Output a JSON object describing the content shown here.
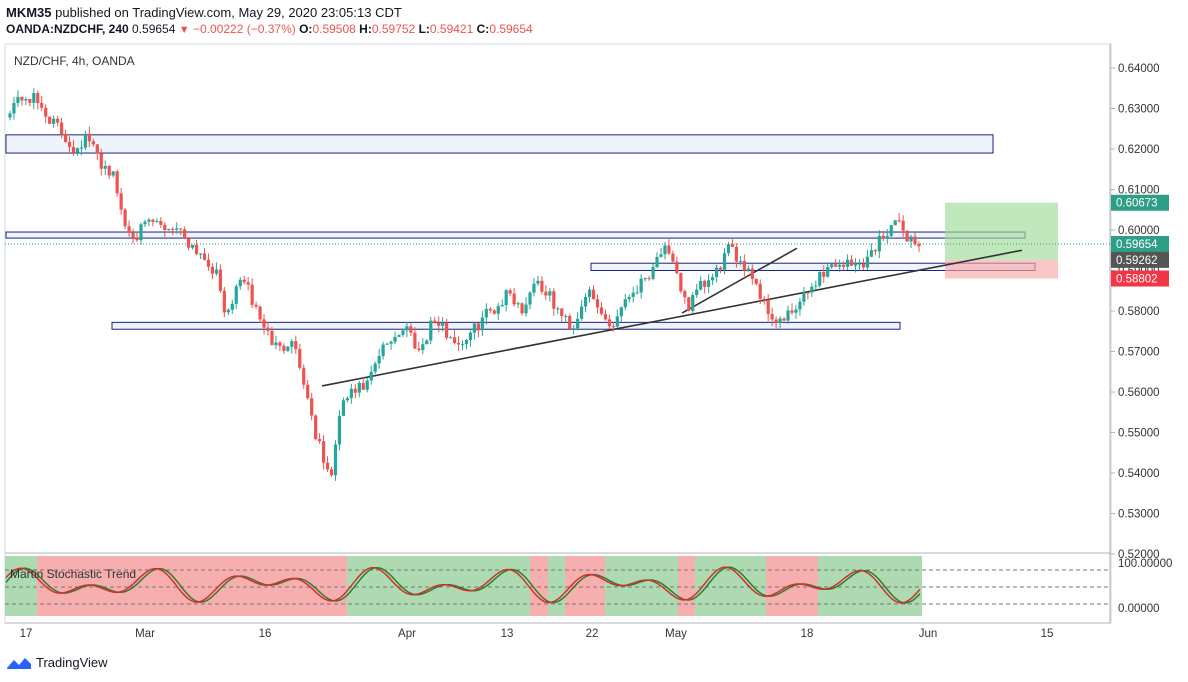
{
  "header": {
    "author": "MKM35",
    "published_text": "published on TradingView.com, May 29, 2020 23:05:13 CDT",
    "symbol": "OANDA:NZDCHF, 240",
    "last": "0.59654",
    "change": "−0.00222 (−0.37%)",
    "o_label": "O:",
    "o": "0.59508",
    "h_label": "H:",
    "h": "0.59752",
    "l_label": "L:",
    "l": "0.59421",
    "c_label": "C:",
    "c": "0.59654"
  },
  "pane_label": "NZD/CHF, 4h, OANDA",
  "indicator_label": "Martin Stochastic Trend",
  "brand": "TradingView",
  "colors": {
    "up": "#26a69a",
    "down": "#ef5350",
    "zone_border": "#1a237e",
    "zone_fill": "#e8eef8",
    "tp": "#9fdc9a",
    "sl": "#f7a8a8",
    "price_badge": "#2e9e87",
    "entry_badge": "#555555",
    "stop_badge": "#f23645"
  },
  "chart_data": {
    "type": "candlestick",
    "title": "NZD/CHF, 4h, OANDA",
    "ylim": [
      0.52,
      0.64
    ],
    "y_ticks": [
      "0.64000",
      "0.63000",
      "0.62000",
      "0.61000",
      "0.60000",
      "0.59000",
      "0.58000",
      "0.57000",
      "0.56000",
      "0.55000",
      "0.54000",
      "0.53000",
      "0.52000"
    ],
    "x_ticks": [
      "17",
      "Mar",
      "16",
      "Apr",
      "13",
      "22",
      "May",
      "18",
      "Jun",
      "15"
    ],
    "price_path": [
      [
        0.6305,
        0.633,
        0.632,
        0.628,
        0.624,
        0.62,
        0.623,
        0.617,
        0.614,
        0.601,
        0.599,
        0.602,
        0.6005,
        0.601,
        0.597,
        0.594,
        0.59,
        0.578,
        0.589,
        0.582,
        0.575,
        0.57,
        0.574,
        0.562,
        0.548,
        0.538,
        0.558,
        0.56,
        0.562,
        0.57,
        0.574,
        0.576,
        0.57,
        0.578,
        0.575,
        0.572,
        0.574,
        0.579,
        0.581,
        0.585,
        0.58,
        0.588,
        0.584,
        0.579,
        0.576,
        0.585,
        0.58,
        0.576,
        0.583,
        0.586,
        0.59,
        0.596,
        0.589,
        0.581,
        0.586,
        0.588,
        0.595,
        0.593,
        0.589,
        0.581,
        0.577,
        0.579,
        0.583,
        0.588,
        0.591,
        0.592,
        0.591,
        0.593,
        0.598,
        0.602,
        0.599,
        0.596
      ]
    ],
    "current_price": 0.59654,
    "position": {
      "target": 0.60673,
      "entry": 0.59262,
      "stop": 0.58802
    },
    "horizontal_zones": [
      [
        0.619,
        0.6235
      ],
      [
        0.598,
        0.5995
      ],
      [
        0.59,
        0.5918
      ],
      [
        0.5755,
        0.5772
      ]
    ],
    "trendlines": [
      [
        0.5615,
        0.595
      ],
      [
        0.5795,
        0.5955
      ]
    ],
    "indicator": {
      "name": "Martin Stochastic Trend",
      "ylim": [
        0,
        100
      ],
      "ticks": [
        "100.00000",
        "0.00000"
      ]
    }
  }
}
